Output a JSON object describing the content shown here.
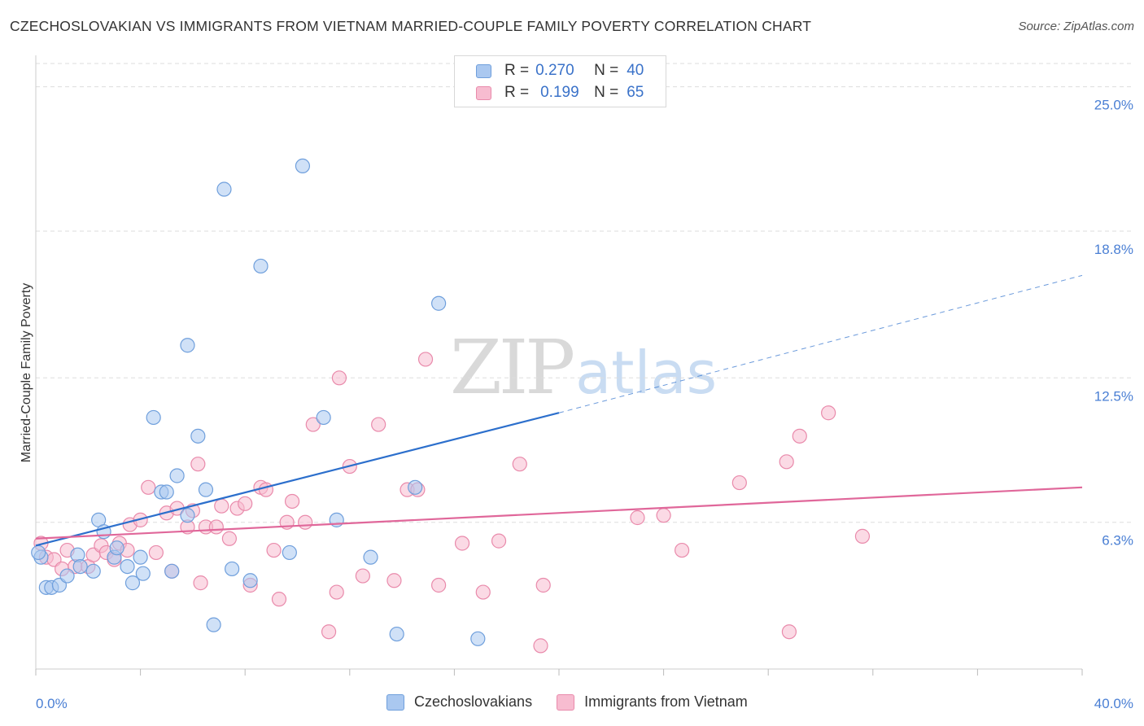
{
  "title": "CZECHOSLOVAKIAN VS IMMIGRANTS FROM VIETNAM MARRIED-COUPLE FAMILY POVERTY CORRELATION CHART",
  "source": "Source: ZipAtlas.com",
  "watermark": {
    "zip": "ZIP",
    "atlas": "atlas"
  },
  "legend_top": [
    {
      "r_label": "R =",
      "r_value": "0.270",
      "n_label": "N =",
      "n_value": "40"
    },
    {
      "r_label": "R =",
      "r_value": "0.199",
      "n_label": "N =",
      "n_value": "65"
    }
  ],
  "legend_bottom": [
    {
      "label": "Czechoslovakians"
    },
    {
      "label": "Immigrants from Vietnam"
    }
  ],
  "colors": {
    "blue_fill": "#aac8f0",
    "blue_stroke": "#6f9fdc",
    "blue_line": "#2c6fcc",
    "pink_fill": "#f7bcd0",
    "pink_stroke": "#e98aab",
    "pink_line": "#e0679a",
    "grid": "#dddddd",
    "tick_text": "#4a7fd4"
  },
  "chart_data": {
    "type": "scatter",
    "title": "CZECHOSLOVAKIAN VS IMMIGRANTS FROM VIETNAM MARRIED-COUPLE FAMILY POVERTY CORRELATION CHART",
    "xlabel": "",
    "ylabel": "Married-Couple Family Poverty",
    "xlim": [
      0,
      40
    ],
    "ylim": [
      0,
      26
    ],
    "x_tick_labels": [
      {
        "value": 0,
        "label": "0.0%"
      },
      {
        "value": 40,
        "label": "40.0%"
      }
    ],
    "y_tick_labels": [
      {
        "value": 6.3,
        "label": "6.3%"
      },
      {
        "value": 12.5,
        "label": "12.5%"
      },
      {
        "value": 18.8,
        "label": "18.8%"
      },
      {
        "value": 25.0,
        "label": "25.0%"
      }
    ],
    "series": [
      {
        "name": "Czechoslovakians",
        "r": 0.27,
        "n": 40,
        "trend": {
          "x0": 0,
          "y0": 5.3,
          "x1": 20,
          "y1": 11.0,
          "dashed_to_x": 40,
          "dashed_to_y": 16.9
        },
        "points": [
          [
            0.2,
            4.8
          ],
          [
            0.4,
            3.5
          ],
          [
            0.6,
            3.5
          ],
          [
            0.9,
            3.6
          ],
          [
            1.2,
            4.0
          ],
          [
            1.6,
            4.9
          ],
          [
            1.7,
            4.4
          ],
          [
            2.2,
            4.2
          ],
          [
            2.4,
            6.4
          ],
          [
            2.6,
            5.9
          ],
          [
            3.0,
            4.8
          ],
          [
            3.1,
            5.2
          ],
          [
            3.5,
            4.4
          ],
          [
            3.7,
            3.7
          ],
          [
            4.0,
            4.8
          ],
          [
            4.1,
            4.1
          ],
          [
            4.5,
            10.8
          ],
          [
            4.8,
            7.6
          ],
          [
            5.0,
            7.6
          ],
          [
            5.2,
            4.2
          ],
          [
            5.4,
            8.3
          ],
          [
            5.8,
            6.6
          ],
          [
            6.2,
            10.0
          ],
          [
            6.5,
            7.7
          ],
          [
            6.8,
            1.9
          ],
          [
            7.2,
            20.6
          ],
          [
            7.5,
            4.3
          ],
          [
            8.2,
            3.8
          ],
          [
            8.6,
            17.3
          ],
          [
            9.7,
            5.0
          ],
          [
            10.2,
            21.6
          ],
          [
            11.0,
            10.8
          ],
          [
            11.5,
            6.4
          ],
          [
            12.8,
            4.8
          ],
          [
            13.8,
            1.5
          ],
          [
            14.5,
            7.8
          ],
          [
            15.4,
            15.7
          ],
          [
            16.9,
            1.3
          ],
          [
            5.8,
            13.9
          ],
          [
            0.1,
            5.0
          ]
        ]
      },
      {
        "name": "Immigrants from Vietnam",
        "r": 0.199,
        "n": 65,
        "trend": {
          "x0": 0,
          "y0": 5.6,
          "x1": 40,
          "y1": 7.8
        },
        "points": [
          [
            0.2,
            5.4
          ],
          [
            0.4,
            4.8
          ],
          [
            0.7,
            4.7
          ],
          [
            1.0,
            4.3
          ],
          [
            1.2,
            5.1
          ],
          [
            1.5,
            4.4
          ],
          [
            2.0,
            4.4
          ],
          [
            2.2,
            4.9
          ],
          [
            2.5,
            5.3
          ],
          [
            2.7,
            5.0
          ],
          [
            3.0,
            4.7
          ],
          [
            3.2,
            5.4
          ],
          [
            3.5,
            5.1
          ],
          [
            3.6,
            6.2
          ],
          [
            4.0,
            6.4
          ],
          [
            4.3,
            7.8
          ],
          [
            4.6,
            5.0
          ],
          [
            5.0,
            6.7
          ],
          [
            5.2,
            4.2
          ],
          [
            5.4,
            6.9
          ],
          [
            5.8,
            6.1
          ],
          [
            6.0,
            6.8
          ],
          [
            6.2,
            8.8
          ],
          [
            6.3,
            3.7
          ],
          [
            6.5,
            6.1
          ],
          [
            6.9,
            6.1
          ],
          [
            7.1,
            7.0
          ],
          [
            7.4,
            5.6
          ],
          [
            7.7,
            6.9
          ],
          [
            8.0,
            7.1
          ],
          [
            8.2,
            3.6
          ],
          [
            8.6,
            7.8
          ],
          [
            8.8,
            7.7
          ],
          [
            9.1,
            5.1
          ],
          [
            9.3,
            3.0
          ],
          [
            9.6,
            6.3
          ],
          [
            9.8,
            7.2
          ],
          [
            10.3,
            6.3
          ],
          [
            10.6,
            10.5
          ],
          [
            11.2,
            1.6
          ],
          [
            11.5,
            3.3
          ],
          [
            11.6,
            12.5
          ],
          [
            12.0,
            8.7
          ],
          [
            12.5,
            4.0
          ],
          [
            13.1,
            10.5
          ],
          [
            13.7,
            3.8
          ],
          [
            14.2,
            7.7
          ],
          [
            14.6,
            7.7
          ],
          [
            14.9,
            13.3
          ],
          [
            15.4,
            3.6
          ],
          [
            16.3,
            5.4
          ],
          [
            17.1,
            3.3
          ],
          [
            17.7,
            5.5
          ],
          [
            18.5,
            8.8
          ],
          [
            19.3,
            1.0
          ],
          [
            19.4,
            3.6
          ],
          [
            23.0,
            6.5
          ],
          [
            24.0,
            6.6
          ],
          [
            24.7,
            5.1
          ],
          [
            26.9,
            8.0
          ],
          [
            28.7,
            8.9
          ],
          [
            28.8,
            1.6
          ],
          [
            29.2,
            10.0
          ],
          [
            30.3,
            11.0
          ],
          [
            31.6,
            5.7
          ]
        ]
      }
    ]
  }
}
